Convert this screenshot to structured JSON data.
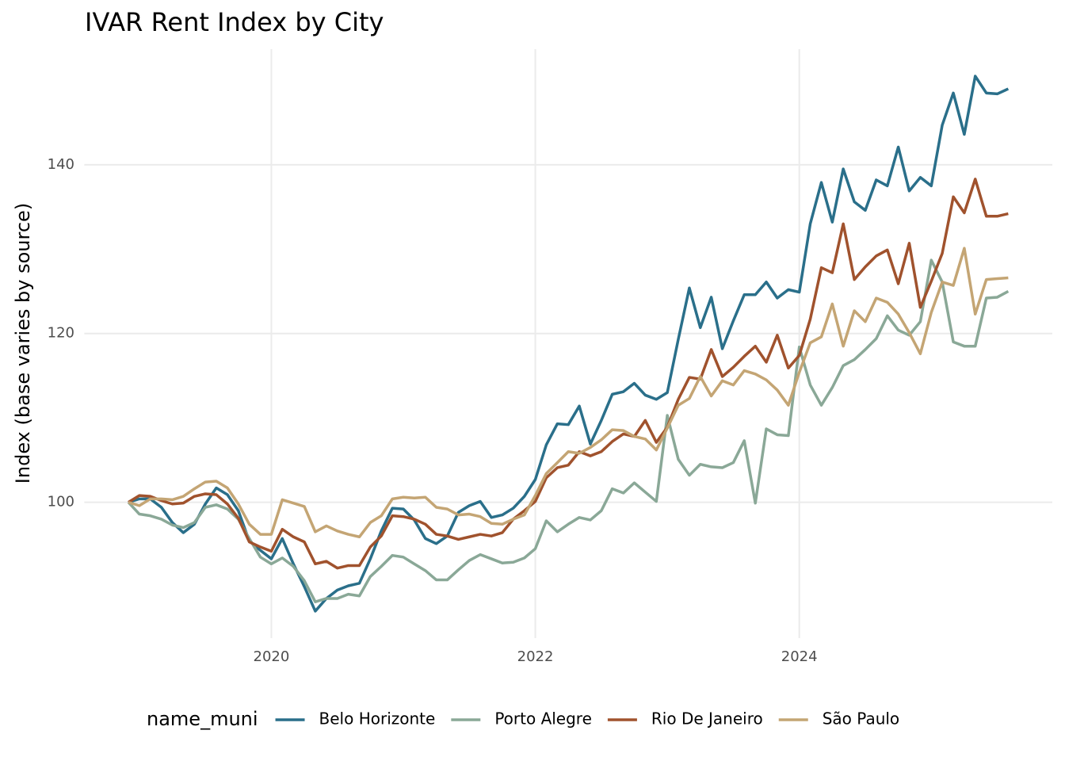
{
  "chart_data": {
    "type": "line",
    "title": "IVAR Rent Index by City",
    "y_label": "Index (base varies by source)",
    "legend_title": "name_muni",
    "legend_position": "bottom",
    "grid": true,
    "x": [
      2018.917,
      2019,
      2019.083,
      2019.167,
      2019.25,
      2019.333,
      2019.417,
      2019.5,
      2019.583,
      2019.667,
      2019.75,
      2019.833,
      2019.917,
      2020,
      2020.083,
      2020.167,
      2020.25,
      2020.333,
      2020.417,
      2020.5,
      2020.583,
      2020.667,
      2020.75,
      2020.833,
      2020.917,
      2021,
      2021.083,
      2021.167,
      2021.25,
      2021.333,
      2021.417,
      2021.5,
      2021.583,
      2021.667,
      2021.75,
      2021.833,
      2021.917,
      2022,
      2022.083,
      2022.167,
      2022.25,
      2022.333,
      2022.417,
      2022.5,
      2022.583,
      2022.667,
      2022.75,
      2022.833,
      2022.917,
      2023,
      2023.083,
      2023.167,
      2023.25,
      2023.333,
      2023.417,
      2023.5,
      2023.583,
      2023.667,
      2023.75,
      2023.833,
      2023.917,
      2024,
      2024.083,
      2024.167,
      2024.25,
      2024.333,
      2024.417,
      2024.5,
      2024.583,
      2024.667,
      2024.75,
      2024.833,
      2024.917,
      2025,
      2025.083,
      2025.167,
      2025.25,
      2025.333,
      2025.417,
      2025.5,
      2025.583
    ],
    "xlim": [
      2018.583,
      2025.917
    ],
    "xticks": [
      2020,
      2022,
      2024
    ],
    "ylim": [
      83.9,
      153.7
    ],
    "yticks": [
      100,
      120,
      140
    ],
    "series": [
      {
        "name": "Belo Horizonte",
        "color": "#2a6f8a",
        "values": [
          100,
          100.4,
          100.4,
          99.4,
          97.6,
          96.4,
          97.4,
          99.8,
          101.7,
          100.9,
          99,
          95.4,
          94.3,
          93.3,
          95.7,
          92.7,
          90,
          87.1,
          88.6,
          89.6,
          90.1,
          90.4,
          93.3,
          96.6,
          99.3,
          99.2,
          97.9,
          95.7,
          95.1,
          96,
          98.8,
          99.6,
          100.1,
          98.2,
          98.5,
          99.3,
          100.7,
          102.7,
          106.8,
          109.3,
          109.2,
          111.4,
          106.9,
          109.7,
          112.8,
          113.1,
          114.1,
          112.7,
          112.2,
          113,
          119.3,
          125.4,
          120.7,
          124.3,
          118.2,
          121.5,
          124.6,
          124.6,
          126.1,
          124.2,
          125.2,
          124.9,
          133,
          137.9,
          133.2,
          139.5,
          135.6,
          134.6,
          138.2,
          137.5,
          142.1,
          136.9,
          138.5,
          137.5,
          144.7,
          148.5,
          143.6,
          150.5,
          148.5,
          148.4,
          149
        ]
      },
      {
        "name": "Porto Alegre",
        "color": "#8aa897",
        "values": [
          100,
          98.6,
          98.4,
          98,
          97.3,
          97,
          97.6,
          99.4,
          99.7,
          99.2,
          98,
          95.7,
          93.5,
          92.7,
          93.4,
          92.4,
          90.7,
          88.2,
          88.6,
          88.6,
          89.1,
          88.9,
          91.2,
          92.4,
          93.7,
          93.5,
          92.7,
          91.9,
          90.8,
          90.8,
          92,
          93.1,
          93.8,
          93.3,
          92.8,
          92.9,
          93.4,
          94.5,
          97.8,
          96.5,
          97.4,
          98.2,
          97.9,
          99,
          101.6,
          101.1,
          102.3,
          101.2,
          100.1,
          110.3,
          105.1,
          103.2,
          104.5,
          104.2,
          104.1,
          104.7,
          107.3,
          99.9,
          108.7,
          108,
          107.9,
          118.4,
          113.9,
          111.5,
          113.6,
          116.2,
          116.9,
          118.1,
          119.4,
          122.1,
          120.4,
          119.8,
          121.4,
          128.7,
          126.1,
          119,
          118.5,
          118.5,
          124.2,
          124.3,
          125
        ]
      },
      {
        "name": "Rio De Janeiro",
        "color": "#a0522d",
        "values": [
          100,
          100.8,
          100.7,
          100.2,
          99.8,
          99.9,
          100.7,
          101,
          100.9,
          99.8,
          98.1,
          95.3,
          94.7,
          94.2,
          96.8,
          95.9,
          95.3,
          92.7,
          93,
          92.2,
          92.5,
          92.5,
          94.7,
          96,
          98.4,
          98.3,
          98,
          97.4,
          96.2,
          96,
          95.6,
          95.9,
          96.2,
          96,
          96.4,
          98,
          99,
          100.1,
          102.9,
          104.1,
          104.4,
          106,
          105.5,
          106,
          107.2,
          108.1,
          107.8,
          109.7,
          107.1,
          108.9,
          112.2,
          114.8,
          114.6,
          118.1,
          114.9,
          116,
          117.3,
          118.5,
          116.6,
          119.8,
          115.9,
          117.4,
          121.7,
          127.8,
          127.2,
          133,
          126.4,
          127.9,
          129.2,
          129.9,
          125.9,
          130.7,
          123.1,
          126.2,
          129.5,
          136.2,
          134.3,
          138.3,
          133.9,
          133.9,
          134.2
        ]
      },
      {
        "name": "São Paulo",
        "color": "#c4a574",
        "values": [
          100,
          99.6,
          100.4,
          100.4,
          100.3,
          100.7,
          101.6,
          102.4,
          102.5,
          101.7,
          99.8,
          97.4,
          96.2,
          96.2,
          100.3,
          99.9,
          99.5,
          96.5,
          97.2,
          96.6,
          96.2,
          95.9,
          97.6,
          98.4,
          100.4,
          100.6,
          100.5,
          100.6,
          99.4,
          99.2,
          98.5,
          98.6,
          98.3,
          97.5,
          97.4,
          98,
          98.5,
          100.8,
          103.4,
          104.7,
          106,
          105.8,
          106.5,
          107.4,
          108.6,
          108.5,
          107.8,
          107.5,
          106.2,
          108.8,
          111.5,
          112.3,
          114.9,
          112.6,
          114.4,
          113.9,
          115.6,
          115.2,
          114.5,
          113.3,
          111.5,
          115.4,
          118.9,
          119.6,
          123.5,
          118.5,
          122.7,
          121.4,
          124.2,
          123.7,
          122.3,
          120.1,
          117.6,
          122.5,
          126.1,
          125.7,
          130.1,
          122.3,
          126.4,
          126.5,
          126.6
        ]
      }
    ]
  }
}
